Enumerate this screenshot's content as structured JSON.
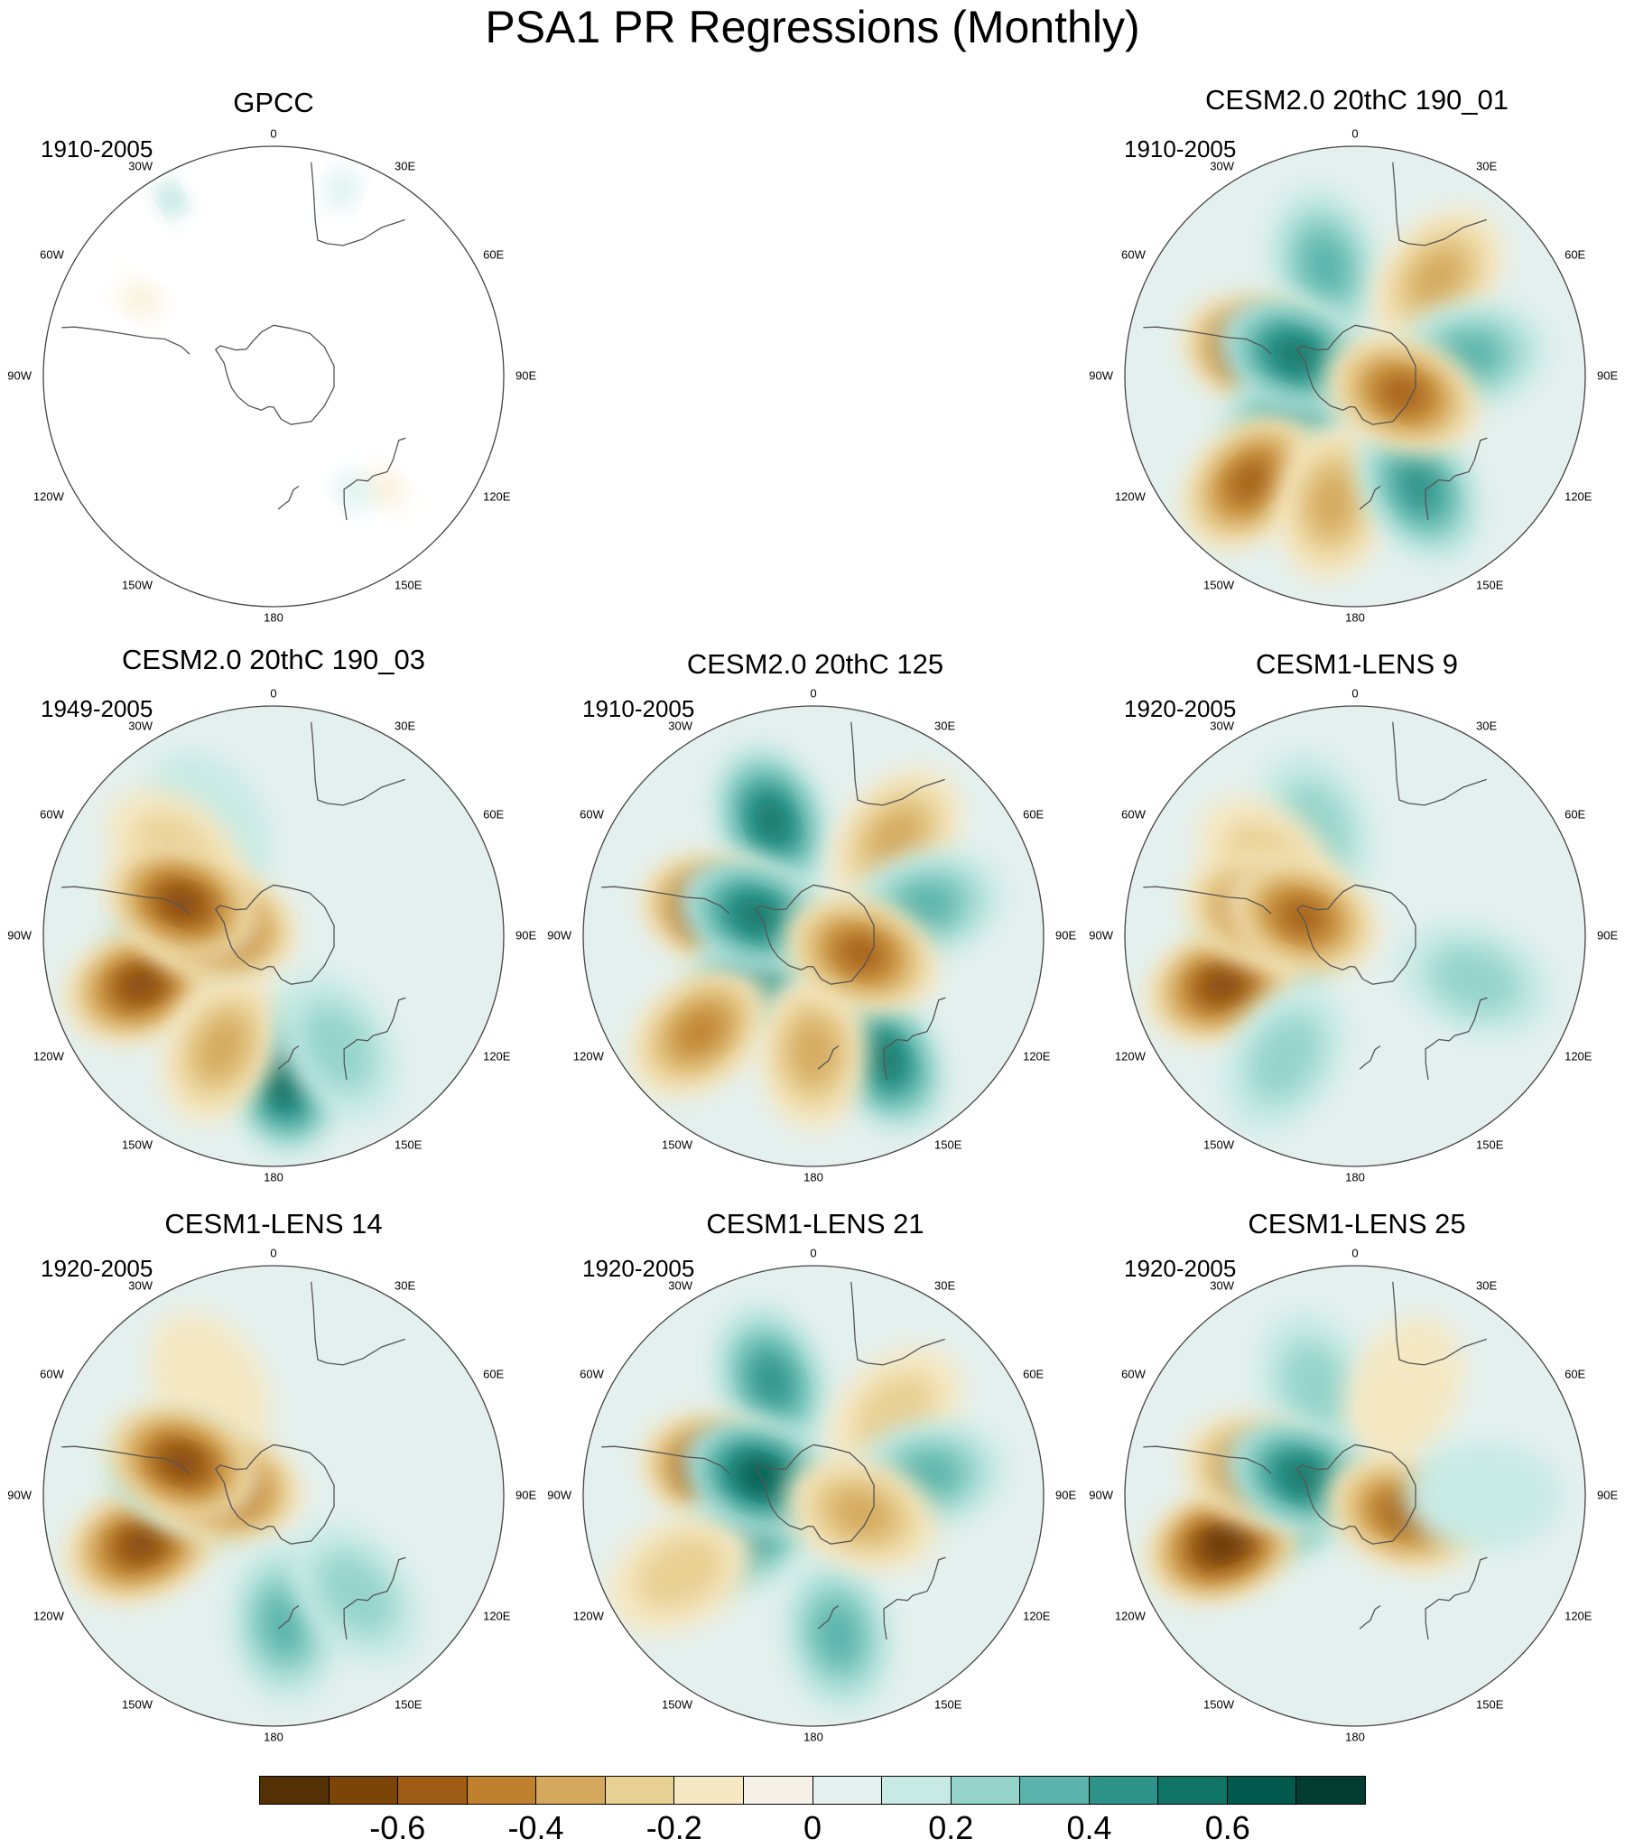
{
  "title": "PSA1 PR Regressions (Monthly)",
  "colors": {
    "background": "#ffffff",
    "land_outline": "#555555",
    "colorbar": [
      "#543005",
      "#7b4508",
      "#9f5c14",
      "#c0812e",
      "#d4a95d",
      "#e8cf92",
      "#f6e8c3",
      "#f5f1e6",
      "#e4f0ee",
      "#c7eae5",
      "#95d4ca",
      "#5ab4ac",
      "#2d9287",
      "#0f7366",
      "#01594e",
      "#003c30"
    ]
  },
  "colorbar": {
    "levels": [
      -0.7,
      -0.6,
      -0.5,
      -0.4,
      -0.3,
      -0.2,
      -0.1,
      0,
      0.1,
      0.2,
      0.3,
      0.4,
      0.5,
      0.6,
      0.7
    ],
    "tick_labels": [
      "-0.6",
      "-0.4",
      "-0.2",
      "0",
      "0.2",
      "0.4",
      "0.6"
    ],
    "tick_values": [
      -0.6,
      -0.4,
      -0.2,
      0,
      0.2,
      0.4,
      0.6
    ]
  },
  "lon_labels": [
    "0",
    "30E",
    "60E",
    "90E",
    "120E",
    "150E",
    "180",
    "150W",
    "120W",
    "90W",
    "60W",
    "30W"
  ],
  "chart_data": [
    {
      "type": "heatmap",
      "projection": "south-polar-stereographic",
      "title": "GPCC",
      "period": "1910-2005",
      "data_coverage": "land-only",
      "field": "precipitation regression on PSA1",
      "anomalies": [
        {
          "lon": 330,
          "lat": -10,
          "value": 0.2
        },
        {
          "lon": 300,
          "lat": -30,
          "value": -0.1
        },
        {
          "lon": 135,
          "lat": -28,
          "value": -0.1
        },
        {
          "lon": 145,
          "lat": -35,
          "value": 0.15
        },
        {
          "lon": 20,
          "lat": -12,
          "value": 0.1
        }
      ]
    },
    {
      "type": "heatmap",
      "projection": "south-polar-stereographic",
      "title": "CESM2.0 20thC 190_01",
      "period": "1910-2005",
      "anomalies": [
        {
          "lon": 345,
          "lat": -45,
          "value": 0.3
        },
        {
          "lon": 40,
          "lat": -40,
          "value": -0.3
        },
        {
          "lon": 80,
          "lat": -45,
          "value": 0.25
        },
        {
          "lon": 285,
          "lat": -52,
          "value": -0.7
        },
        {
          "lon": 240,
          "lat": -62,
          "value": 0.4
        },
        {
          "lon": 225,
          "lat": -32,
          "value": -0.5
        },
        {
          "lon": 190,
          "lat": -40,
          "value": -0.3
        },
        {
          "lon": 150,
          "lat": -40,
          "value": 0.4
        },
        {
          "lon": 290,
          "lat": -65,
          "value": 0.5
        },
        {
          "lon": 110,
          "lat": -70,
          "value": -0.5
        }
      ]
    },
    {
      "type": "heatmap",
      "projection": "south-polar-stereographic",
      "title": "CESM2.0 20thC 190_03",
      "period": "1949-2005",
      "anomalies": [
        {
          "lon": 330,
          "lat": -40,
          "value": 0.15
        },
        {
          "lon": 310,
          "lat": -40,
          "value": -0.2
        },
        {
          "lon": 265,
          "lat": -55,
          "value": 0.5
        },
        {
          "lon": 250,
          "lat": -35,
          "value": -0.6
        },
        {
          "lon": 175,
          "lat": -35,
          "value": 0.55
        },
        {
          "lon": 205,
          "lat": -42,
          "value": -0.25
        },
        {
          "lon": 280,
          "lat": -68,
          "value": -0.6
        },
        {
          "lon": 290,
          "lat": -52,
          "value": -0.6
        },
        {
          "lon": 150,
          "lat": -40,
          "value": 0.2
        }
      ]
    },
    {
      "type": "heatmap",
      "projection": "south-polar-stereographic",
      "title": "CESM2.0 20thC 125",
      "period": "1910-2005",
      "anomalies": [
        {
          "lon": 340,
          "lat": -42,
          "value": 0.45
        },
        {
          "lon": 40,
          "lat": -40,
          "value": -0.3
        },
        {
          "lon": 75,
          "lat": -45,
          "value": 0.25
        },
        {
          "lon": 285,
          "lat": -52,
          "value": -0.7
        },
        {
          "lon": 235,
          "lat": -62,
          "value": 0.45
        },
        {
          "lon": 230,
          "lat": -32,
          "value": -0.4
        },
        {
          "lon": 150,
          "lat": -35,
          "value": 0.5
        },
        {
          "lon": 180,
          "lat": -45,
          "value": -0.25
        },
        {
          "lon": 290,
          "lat": -66,
          "value": 0.5
        },
        {
          "lon": 110,
          "lat": -70,
          "value": -0.5
        }
      ]
    },
    {
      "type": "heatmap",
      "projection": "south-polar-stereographic",
      "title": "CESM1-LENS 9",
      "period": "1920-2005",
      "anomalies": [
        {
          "lon": 340,
          "lat": -45,
          "value": 0.2
        },
        {
          "lon": 310,
          "lat": -45,
          "value": -0.2
        },
        {
          "lon": 265,
          "lat": -57,
          "value": 0.5
        },
        {
          "lon": 250,
          "lat": -35,
          "value": -0.6
        },
        {
          "lon": 210,
          "lat": -35,
          "value": 0.2
        },
        {
          "lon": 285,
          "lat": -52,
          "value": -0.5
        },
        {
          "lon": 290,
          "lat": -68,
          "value": -0.5
        },
        {
          "lon": 110,
          "lat": -40,
          "value": 0.2
        }
      ]
    },
    {
      "type": "heatmap",
      "projection": "south-polar-stereographic",
      "title": "CESM1-LENS 14",
      "period": "1920-2005",
      "anomalies": [
        {
          "lon": 330,
          "lat": -40,
          "value": -0.15
        },
        {
          "lon": 270,
          "lat": -57,
          "value": 0.5
        },
        {
          "lon": 250,
          "lat": -35,
          "value": -0.6
        },
        {
          "lon": 285,
          "lat": -55,
          "value": 0.55
        },
        {
          "lon": 280,
          "lat": -70,
          "value": -0.6
        },
        {
          "lon": 175,
          "lat": -40,
          "value": 0.3
        },
        {
          "lon": 140,
          "lat": -40,
          "value": 0.2
        },
        {
          "lon": 290,
          "lat": -52,
          "value": -0.6
        }
      ]
    },
    {
      "type": "heatmap",
      "projection": "south-polar-stereographic",
      "title": "CESM1-LENS 21",
      "period": "1920-2005",
      "anomalies": [
        {
          "lon": 340,
          "lat": -42,
          "value": 0.4
        },
        {
          "lon": 45,
          "lat": -45,
          "value": -0.2
        },
        {
          "lon": 80,
          "lat": -45,
          "value": 0.25
        },
        {
          "lon": 285,
          "lat": -52,
          "value": -0.7
        },
        {
          "lon": 240,
          "lat": -60,
          "value": 0.4
        },
        {
          "lon": 240,
          "lat": -30,
          "value": -0.2
        },
        {
          "lon": 290,
          "lat": -68,
          "value": 0.6
        },
        {
          "lon": 170,
          "lat": -35,
          "value": 0.3
        },
        {
          "lon": 110,
          "lat": -70,
          "value": -0.3
        }
      ]
    },
    {
      "type": "heatmap",
      "projection": "south-polar-stereographic",
      "title": "CESM1-LENS 25",
      "period": "1920-2005",
      "anomalies": [
        {
          "lon": 340,
          "lat": -45,
          "value": 0.2
        },
        {
          "lon": 25,
          "lat": -45,
          "value": -0.15
        },
        {
          "lon": 260,
          "lat": -58,
          "value": 0.5
        },
        {
          "lon": 250,
          "lat": -35,
          "value": -0.65
        },
        {
          "lon": 285,
          "lat": -52,
          "value": -0.5
        },
        {
          "lon": 290,
          "lat": -68,
          "value": 0.5
        },
        {
          "lon": 110,
          "lat": -70,
          "value": -0.45
        },
        {
          "lon": 90,
          "lat": -40,
          "value": 0.15
        }
      ]
    }
  ]
}
